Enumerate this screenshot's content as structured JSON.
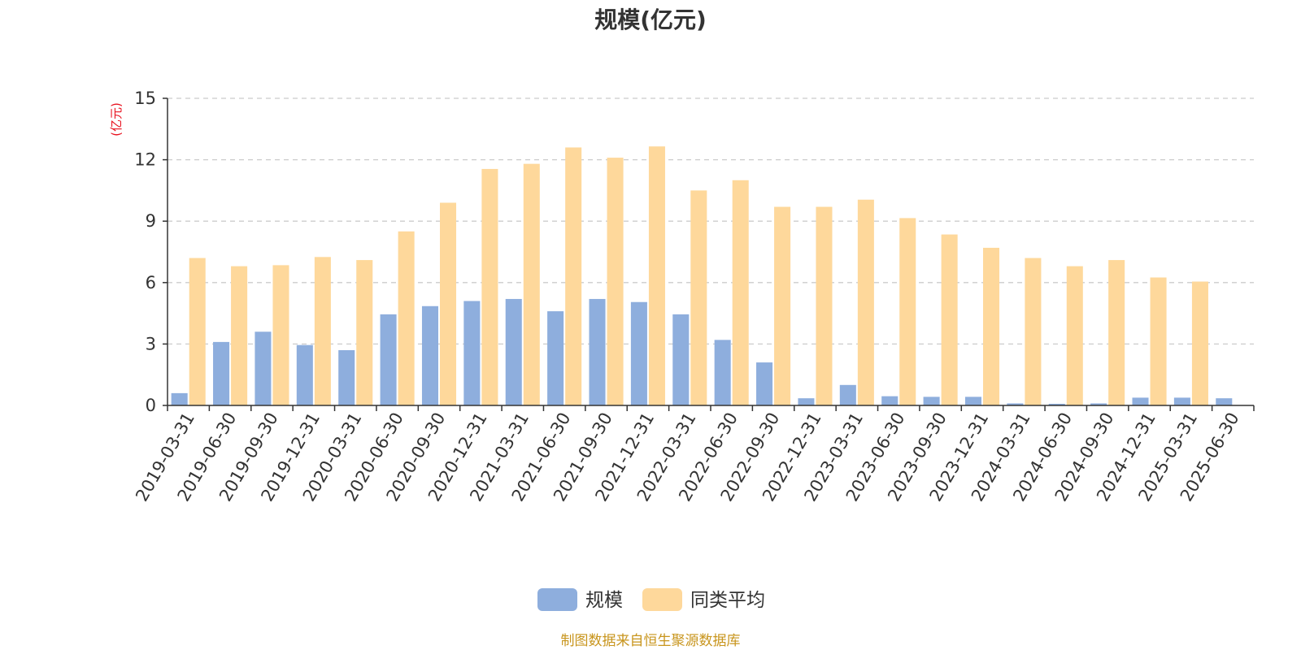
{
  "chart_data": {
    "type": "bar",
    "title": "规模(亿元)",
    "ylabel": "(亿元)",
    "ylim": [
      0,
      15
    ],
    "yticks": [
      0,
      3,
      6,
      9,
      12,
      15
    ],
    "grid": true,
    "legend_position": "bottom",
    "categories": [
      "2019-03-31",
      "2019-06-30",
      "2019-09-30",
      "2019-12-31",
      "2020-03-31",
      "2020-06-30",
      "2020-09-30",
      "2020-12-31",
      "2021-03-31",
      "2021-06-30",
      "2021-09-30",
      "2021-12-31",
      "2022-03-31",
      "2022-06-30",
      "2022-09-30",
      "2022-12-31",
      "2023-03-31",
      "2023-06-30",
      "2023-09-30",
      "2023-12-31",
      "2024-03-31",
      "2024-06-30",
      "2024-09-30",
      "2024-12-31",
      "2025-03-31",
      "2025-06-30"
    ],
    "series": [
      {
        "name": "规模",
        "color": "#8eaedd",
        "values": [
          0.6,
          3.1,
          3.6,
          2.95,
          2.7,
          4.45,
          4.85,
          5.1,
          5.2,
          4.6,
          5.2,
          5.05,
          4.45,
          3.2,
          2.1,
          0.35,
          1.0,
          0.45,
          0.42,
          0.42,
          0.1,
          0.08,
          0.1,
          0.38,
          0.38,
          0.35
        ]
      },
      {
        "name": "同类平均",
        "color": "#fed89b",
        "values": [
          7.2,
          6.8,
          6.85,
          7.25,
          7.1,
          8.5,
          9.9,
          11.55,
          11.8,
          12.6,
          12.1,
          12.65,
          10.5,
          11.0,
          9.7,
          9.7,
          10.05,
          9.15,
          8.35,
          7.7,
          7.2,
          6.8,
          7.1,
          6.25,
          6.05,
          null
        ]
      }
    ]
  },
  "source_note": "制图数据来自恒生聚源数据库",
  "colors": {
    "axis": "#333333",
    "grid": "#cccccc",
    "unit_label": "#e8121f",
    "source_note": "#c8951d"
  }
}
